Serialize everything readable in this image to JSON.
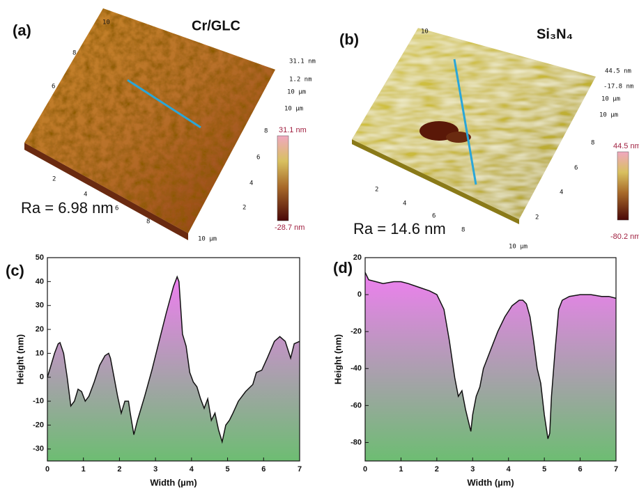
{
  "afm_images": [
    {
      "label": "(a)",
      "title": "Cr/GLC",
      "ra": "Ra = 6.98 nm",
      "colorbar_max": "31.1 nm",
      "colorbar_min": "-28.7 nm",
      "z_labels": [
        "31.1 nm",
        "1.2 nm",
        "10 µm",
        "10 µm"
      ],
      "left_ticks": [
        "10",
        "8",
        "6"
      ],
      "right_ticks": [
        "8",
        "6",
        "4",
        "2"
      ],
      "front_ticks": [
        "2",
        "4",
        "6",
        "8",
        "10 µm"
      ]
    },
    {
      "label": "(b)",
      "title": "Si₃N₄",
      "ra": "Ra = 14.6 nm",
      "colorbar_max": "44.5 nm",
      "colorbar_min": "-80.2 nm",
      "z_labels": [
        "44.5 nm",
        "-17.8 nm",
        "10 µm",
        "10 µm"
      ],
      "left_ticks": [
        "10"
      ],
      "right_ticks": [
        "8",
        "6",
        "4",
        "2"
      ],
      "front_ticks": [
        "2",
        "4",
        "6",
        "8",
        "10 µm"
      ]
    }
  ],
  "chart_data": [
    {
      "type": "line",
      "label": "(c)",
      "x_label": "Width (µm)",
      "y_label": "Height (nm)",
      "x": [
        0,
        0.1,
        0.2,
        0.3,
        0.35,
        0.45,
        0.55,
        0.65,
        0.75,
        0.85,
        0.95,
        1.05,
        1.15,
        1.3,
        1.45,
        1.6,
        1.7,
        1.75,
        1.85,
        1.95,
        2.05,
        2.15,
        2.25,
        2.3,
        2.4,
        2.5,
        2.7,
        2.9,
        3.1,
        3.3,
        3.5,
        3.6,
        3.65,
        3.75,
        3.85,
        3.95,
        4.05,
        4.15,
        4.25,
        4.35,
        4.45,
        4.55,
        4.65,
        4.75,
        4.85,
        4.95,
        5.05,
        5.15,
        5.3,
        5.5,
        5.7,
        5.8,
        5.95,
        6.1,
        6.3,
        6.45,
        6.6,
        6.75,
        6.85,
        7.0
      ],
      "series": [
        {
          "color": "#111111",
          "values": [
            0,
            5,
            10,
            14,
            14.5,
            10,
            0,
            -12,
            -10,
            -5,
            -6,
            -10,
            -8,
            -2,
            5,
            9,
            10,
            8,
            0,
            -8,
            -15,
            -10,
            -10,
            -15,
            -24,
            -18,
            -8,
            3,
            15,
            27,
            38,
            42,
            40,
            18,
            13,
            2,
            -2,
            -4,
            -9,
            -13,
            -9,
            -18,
            -15,
            -22,
            -27,
            -20,
            -18,
            -15,
            -10,
            -6,
            -3,
            2,
            3,
            8,
            15,
            17,
            15,
            8,
            14,
            15
          ]
        }
      ],
      "xlim": [
        0,
        7
      ],
      "xticks": [
        0,
        1,
        2,
        3,
        4,
        5,
        6,
        7
      ],
      "ylim": [
        -35,
        50
      ],
      "yticks": [
        -30,
        -20,
        -10,
        0,
        10,
        20,
        30,
        40,
        50
      ],
      "fill": [
        "#ee7ff0",
        "#6dbd72"
      ]
    },
    {
      "type": "line",
      "label": "(d)",
      "x_label": "Width (µm)",
      "y_label": "Height (nm)",
      "x": [
        0,
        0.1,
        0.3,
        0.5,
        0.8,
        1.0,
        1.2,
        1.5,
        1.8,
        2.0,
        2.2,
        2.35,
        2.5,
        2.6,
        2.7,
        2.8,
        2.9,
        2.95,
        3.0,
        3.1,
        3.2,
        3.3,
        3.5,
        3.7,
        3.9,
        4.1,
        4.3,
        4.4,
        4.5,
        4.6,
        4.7,
        4.8,
        4.9,
        5.0,
        5.1,
        5.15,
        5.2,
        5.3,
        5.4,
        5.5,
        5.7,
        6.0,
        6.3,
        6.6,
        6.8,
        7.0
      ],
      "series": [
        {
          "color": "#111111",
          "values": [
            12,
            8,
            7,
            6,
            7,
            7,
            6,
            4,
            2,
            0,
            -8,
            -25,
            -45,
            -55,
            -52,
            -62,
            -70,
            -74,
            -65,
            -55,
            -50,
            -40,
            -30,
            -20,
            -12,
            -6,
            -3,
            -3,
            -5,
            -12,
            -25,
            -40,
            -48,
            -65,
            -78,
            -75,
            -55,
            -30,
            -8,
            -3,
            -1,
            0,
            0,
            -1,
            -1,
            -2
          ]
        }
      ],
      "xlim": [
        0,
        7
      ],
      "xticks": [
        0,
        1,
        2,
        3,
        4,
        5,
        6,
        7
      ],
      "ylim": [
        -90,
        20
      ],
      "yticks": [
        -80,
        -60,
        -40,
        -20,
        0,
        20
      ],
      "fill": [
        "#ee7ff0",
        "#6dbd72"
      ]
    }
  ]
}
